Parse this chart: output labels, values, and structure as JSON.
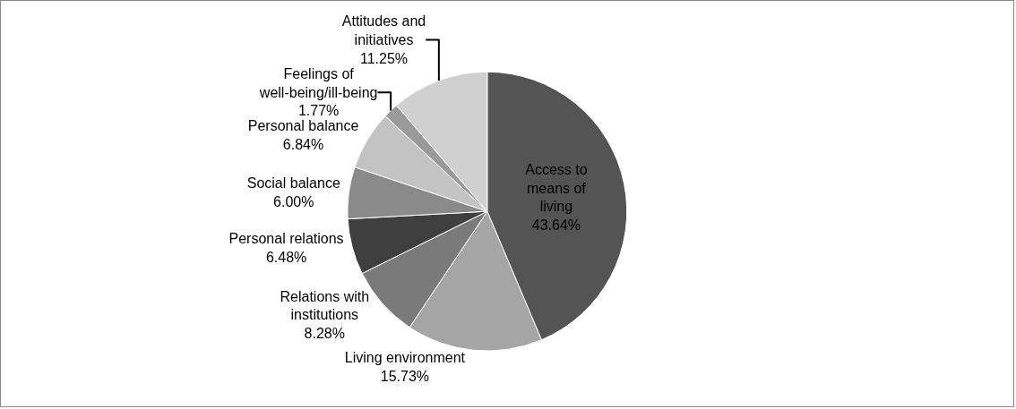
{
  "chart_data": {
    "type": "pie",
    "categories": [
      "Access to means of living",
      "Living environment",
      "Relations with institutions",
      "Personal relations",
      "Social balance",
      "Personal balance",
      "Feelings of well-being/ill-being",
      "Attitudes and initiatives"
    ],
    "values": [
      43.64,
      15.73,
      8.28,
      6.48,
      6.0,
      6.84,
      1.77,
      11.25
    ],
    "value_labels": [
      "43.64%",
      "15.73%",
      "8.28%",
      "6.48%",
      "6.00%",
      "6.84%",
      "1.77%",
      "11.25%"
    ],
    "colors": [
      "#545454",
      "#a5a5a5",
      "#7a7a7a",
      "#3f3f3f",
      "#8a8a8a",
      "#c3c3c3",
      "#9a9a9a",
      "#d0d0d0"
    ],
    "legend": false
  }
}
